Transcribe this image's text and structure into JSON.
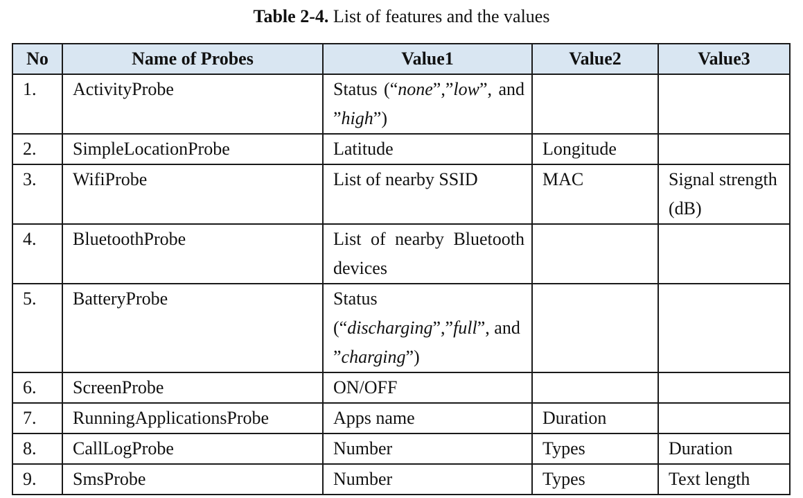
{
  "caption": {
    "label": "Table 2-4.",
    "text": " List of features and the values"
  },
  "headers": [
    "No",
    "Name of Probes",
    "Value1",
    "Value2",
    "Value3"
  ],
  "rows": [
    {
      "no": "1.",
      "name": "ActivityProbe",
      "value1": "Status (“none”,”low”, and ”high”)",
      "value2": "",
      "value3": ""
    },
    {
      "no": "2.",
      "name": "SimpleLocationProbe",
      "value1": "Latitude",
      "value2": "Longitude",
      "value3": ""
    },
    {
      "no": "3.",
      "name": "WifiProbe",
      "value1": "List of nearby SSID",
      "value2": "MAC",
      "value3": "Signal strength (dB)"
    },
    {
      "no": "4.",
      "name": "BluetoothProbe",
      "value1": "List of nearby Bluetooth devices",
      "value2": "",
      "value3": ""
    },
    {
      "no": "5.",
      "name": "BatteryProbe",
      "value1": "Status (“discharging”,”full”, and ”charging”)",
      "value2": "",
      "value3": ""
    },
    {
      "no": "6.",
      "name": "ScreenProbe",
      "value1": "ON/OFF",
      "value2": "",
      "value3": ""
    },
    {
      "no": "7.",
      "name": "RunningApplicationsProbe",
      "value1": "Apps name",
      "value2": "Duration",
      "value3": ""
    },
    {
      "no": "8.",
      "name": "CallLogProbe",
      "value1": "Number",
      "value2": "Types",
      "value3": "Duration"
    },
    {
      "no": "9.",
      "name": "SmsProbe",
      "value1": "Number",
      "value2": "Types",
      "value3": "Text length"
    }
  ]
}
